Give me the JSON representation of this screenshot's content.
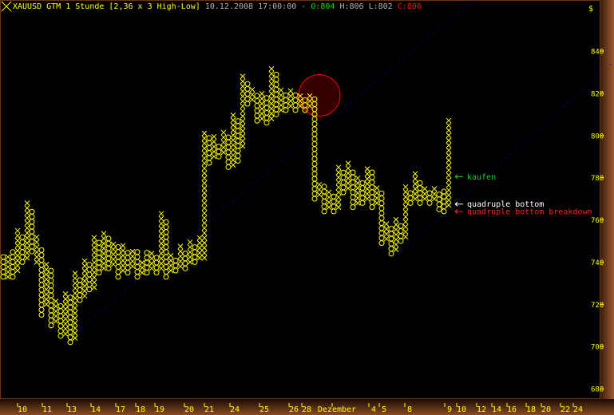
{
  "header": {
    "symbol_title": "XAUUSD GTM 1 Stunde [2,36 x 3 High-Low]",
    "datetime": "10.12.2008 17:00:00 -",
    "open": "O:804",
    "high": "H:806",
    "low": "L:802",
    "close": "C:806"
  },
  "currency_symbol": "$",
  "colors": {
    "background": "#000000",
    "boxes": "#ffff00",
    "trendline": "#0000ff",
    "circle": "#ff0000",
    "buy": "#00cc00",
    "bottom": "#ffffff",
    "breakdown": "#ff0000",
    "axis": "#8a4a22"
  },
  "annotations": [
    {
      "label": "kaufen",
      "color": "#22cc22",
      "price": 780.5
    },
    {
      "label": "quadruple bottom",
      "color": "#ffffff",
      "price": 767.5
    },
    {
      "label": "quadruple bottom breakdown",
      "color": "#ff2020",
      "price": 764
    }
  ],
  "chart_data": {
    "type": "point-and-figure",
    "box_size": 2.36,
    "reversal": 3,
    "ylim": [
      676,
      850
    ],
    "y_ticks": [
      680,
      700,
      720,
      740,
      760,
      780,
      800,
      820,
      840
    ],
    "x_ticks": [
      "10",
      "11",
      "13",
      "14",
      "17",
      "18",
      "19",
      "20",
      "21",
      "24",
      "25",
      "26",
      "28",
      "Dezember",
      "4",
      "5",
      "8",
      "9",
      "10",
      "12",
      "14",
      "16",
      "18",
      "20",
      "22",
      "24"
    ],
    "columns": [
      [
        "O",
        733,
        744
      ],
      [
        "X",
        733,
        744
      ],
      [
        "O",
        733,
        746
      ],
      [
        "X",
        736,
        756
      ],
      [
        "O",
        740,
        752
      ],
      [
        "X",
        742,
        768
      ],
      [
        "O",
        745,
        765
      ],
      [
        "X",
        740,
        752
      ],
      [
        "O",
        715,
        748
      ],
      [
        "X",
        720,
        740
      ],
      [
        "O",
        710,
        738
      ],
      [
        "X",
        712,
        722
      ],
      [
        "O",
        705,
        720
      ],
      [
        "X",
        706,
        726
      ],
      [
        "O",
        702,
        724
      ],
      [
        "X",
        704,
        735
      ],
      [
        "O",
        722,
        733
      ],
      [
        "X",
        724,
        742
      ],
      [
        "O",
        727,
        740
      ],
      [
        "X",
        728,
        752
      ],
      [
        "O",
        735,
        750
      ],
      [
        "X",
        737,
        754
      ],
      [
        "O",
        737,
        752
      ],
      [
        "X",
        739,
        750
      ],
      [
        "O",
        733,
        748
      ],
      [
        "X",
        736,
        748
      ],
      [
        "O",
        735,
        745
      ],
      [
        "X",
        738,
        747
      ],
      [
        "O",
        733,
        745
      ],
      [
        "X",
        735,
        742
      ],
      [
        "O",
        735,
        745
      ],
      [
        "X",
        737,
        745
      ],
      [
        "O",
        735,
        743
      ],
      [
        "X",
        737,
        763
      ],
      [
        "O",
        733,
        761
      ],
      [
        "X",
        736,
        745
      ],
      [
        "O",
        736,
        743
      ],
      [
        "X",
        738,
        748
      ],
      [
        "O",
        737,
        746
      ],
      [
        "X",
        740,
        751
      ],
      [
        "O",
        740,
        748
      ],
      [
        "X",
        742,
        752
      ],
      [
        "X",
        742,
        801
      ],
      [
        "O",
        787,
        799
      ],
      [
        "X",
        790,
        800
      ],
      [
        "O",
        790,
        797
      ],
      [
        "X",
        792,
        803
      ],
      [
        "O",
        785,
        800
      ],
      [
        "X",
        786,
        810
      ],
      [
        "O",
        788,
        808
      ],
      [
        "X",
        795,
        829
      ],
      [
        "O",
        815,
        826
      ],
      [
        "X",
        817,
        823
      ],
      [
        "O",
        807,
        820
      ],
      [
        "X",
        808,
        821
      ],
      [
        "O",
        806,
        818
      ],
      [
        "X",
        808,
        832
      ],
      [
        "O",
        810,
        829
      ],
      [
        "X",
        812,
        822
      ],
      [
        "O",
        812,
        820
      ],
      [
        "X",
        814,
        822
      ],
      [
        "O",
        812,
        820
      ],
      [
        "X",
        814,
        820
      ],
      [
        "O",
        812,
        818
      ],
      [
        "X",
        814,
        820
      ],
      [
        "O",
        770,
        818
      ],
      [
        "X",
        772,
        778
      ],
      [
        "O",
        764,
        776
      ],
      [
        "X",
        766,
        775
      ],
      [
        "O",
        764,
        773
      ],
      [
        "X",
        766,
        787
      ],
      [
        "O",
        773,
        784
      ],
      [
        "X",
        775,
        787
      ],
      [
        "O",
        766,
        784
      ],
      [
        "X",
        768,
        781
      ],
      [
        "O",
        768,
        779
      ],
      [
        "X",
        770,
        786
      ],
      [
        "O",
        766,
        784
      ],
      [
        "X",
        768,
        776
      ],
      [
        "O",
        749,
        773
      ],
      [
        "X",
        751,
        760
      ],
      [
        "O",
        744,
        758
      ],
      [
        "X",
        746,
        761
      ],
      [
        "O",
        750,
        758
      ],
      [
        "X",
        752,
        777
      ],
      [
        "O",
        768,
        774
      ],
      [
        "X",
        770,
        782
      ],
      [
        "O",
        768,
        779
      ],
      [
        "X",
        770,
        777
      ],
      [
        "O",
        768,
        775
      ],
      [
        "X",
        770,
        777
      ],
      [
        "O",
        765,
        774
      ],
      [
        "O",
        764,
        775
      ],
      [
        "X",
        767,
        808
      ]
    ],
    "trendlines": [
      {
        "from": [
          13,
          703
        ],
        "to": [
          86,
          841
        ]
      },
      {
        "from": [
          83,
          745
        ],
        "to": [
          125,
          830
        ]
      }
    ],
    "highlight_circle": {
      "column": 66,
      "price": 819
    }
  }
}
